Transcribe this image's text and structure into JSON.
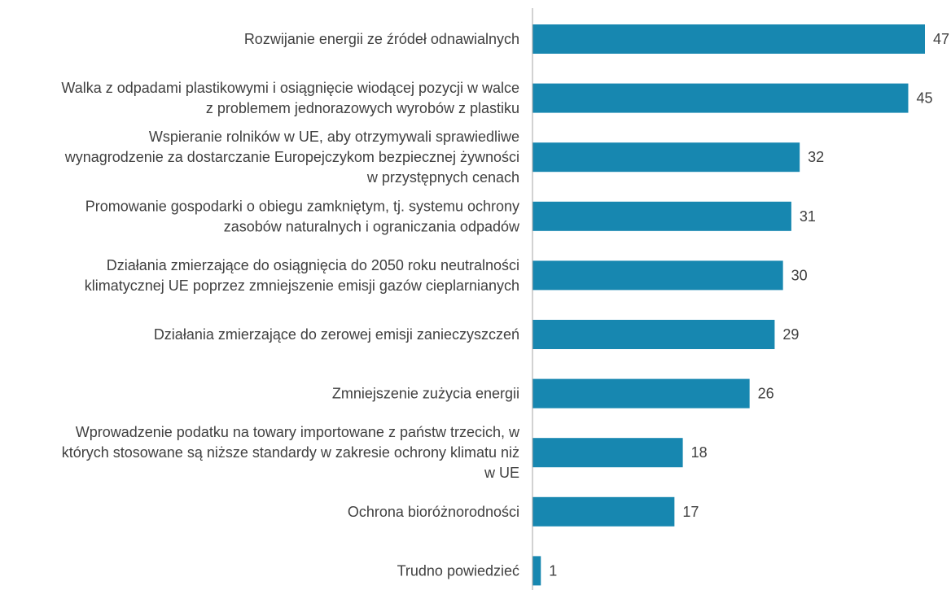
{
  "chart_data": {
    "type": "bar",
    "orientation": "horizontal",
    "bar_color": "#1787b0",
    "axis_color": "#a6a6a6",
    "text_color": "#404040",
    "xlim": [
      0,
      47
    ],
    "grid": false,
    "categories": [
      [
        "Rozwijanie energii ze źródeł odnawialnych"
      ],
      [
        "Walka z odpadami plastikowymi i osiągnięcie wiodącej pozycji w walce",
        "z problemem jednorazowych wyrobów z plastiku"
      ],
      [
        "Wspieranie rolników w UE, aby otrzymywali sprawiedliwe",
        "wynagrodzenie za dostarczanie Europejczykom bezpiecznej żywności",
        "w przystępnych cenach"
      ],
      [
        "Promowanie gospodarki o obiegu zamkniętym, tj. systemu ochrony",
        "zasobów naturalnych i ograniczania odpadów"
      ],
      [
        "Działania zmierzające do osiągnięcia do 2050 roku neutralności",
        "klimatycznej UE poprzez zmniejszenie emisji gazów cieplarnianych"
      ],
      [
        "Działania zmierzające do zerowej emisji zanieczyszczeń"
      ],
      [
        "Zmniejszenie zużycia energii"
      ],
      [
        "Wprowadzenie podatku na towary importowane z państw trzecich, w",
        "których stosowane są niższe standardy w zakresie ochrony klimatu niż",
        "w UE"
      ],
      [
        "Ochrona bioróżnorodności"
      ],
      [
        "Trudno powiedzieć"
      ]
    ],
    "values": [
      47,
      45,
      32,
      31,
      30,
      29,
      26,
      18,
      17,
      1
    ]
  }
}
